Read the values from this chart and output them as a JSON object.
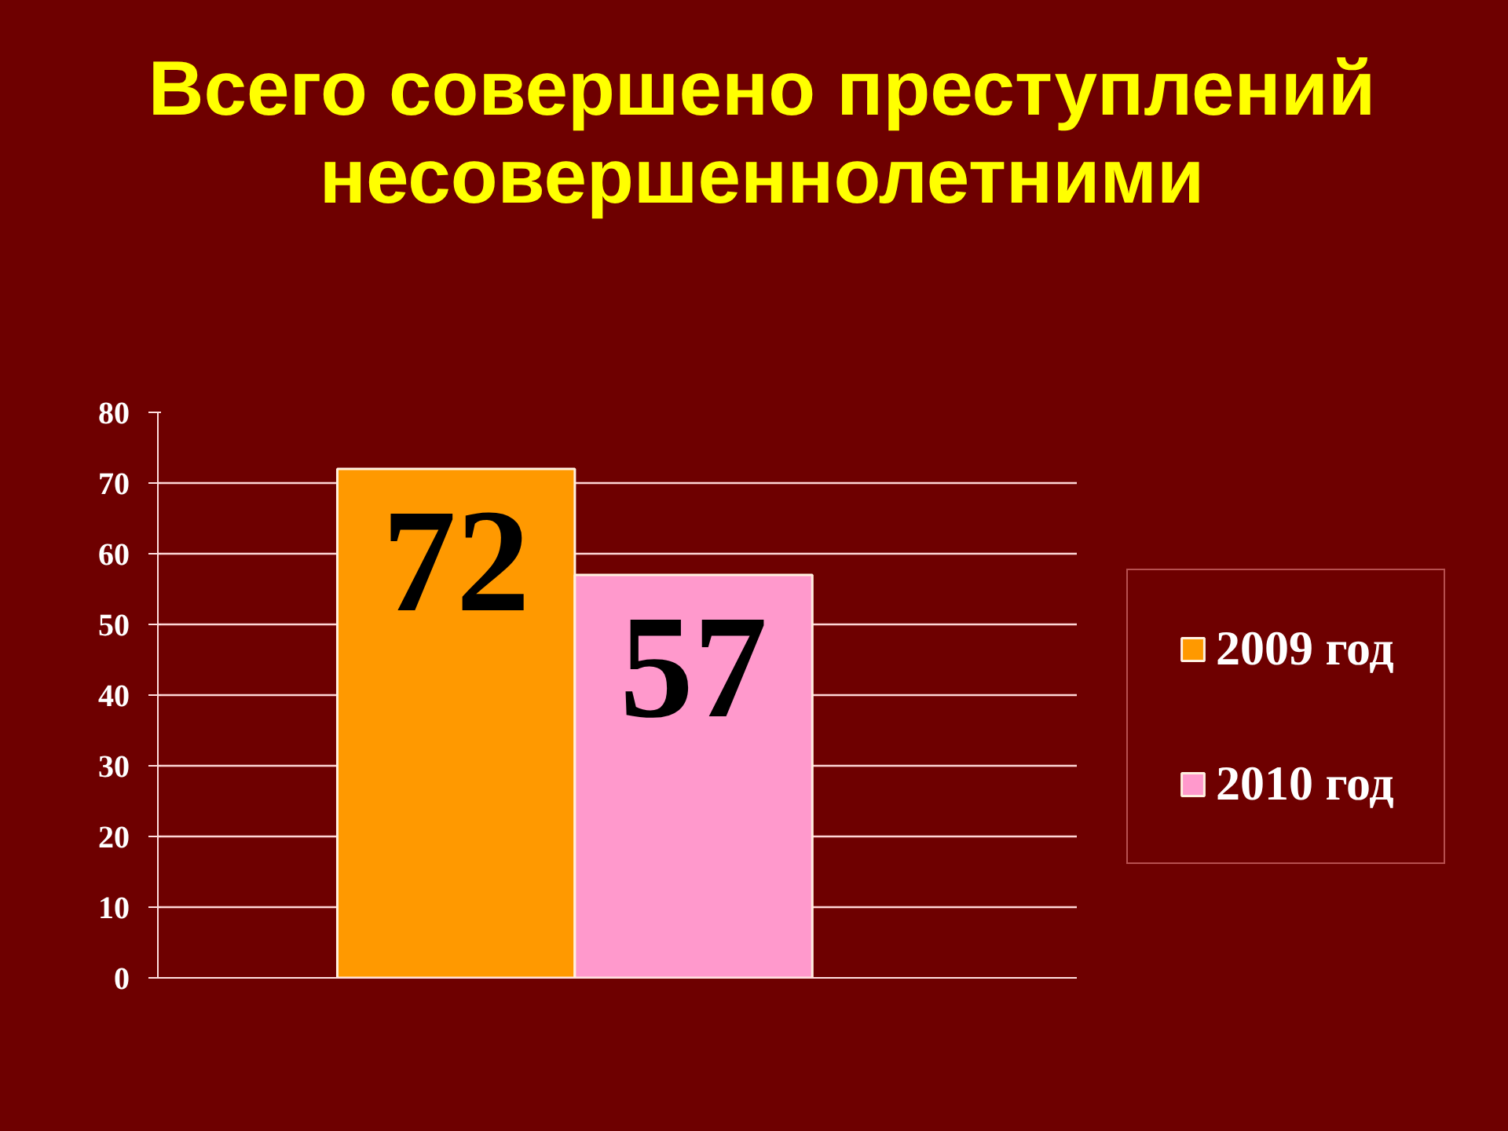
{
  "chart_data": {
    "type": "bar",
    "title": "Всего совершено преступлений несовершеннолетними",
    "categories": [
      null
    ],
    "series": [
      {
        "name": "2009 год",
        "color": "#ff9900",
        "values": [
          72
        ]
      },
      {
        "name": "2010 год",
        "color": "#ff99cc",
        "values": [
          57
        ]
      }
    ],
    "ylim": [
      0,
      80
    ],
    "yticks": [
      0,
      10,
      20,
      30,
      40,
      50,
      60,
      70,
      80
    ],
    "grid": "y",
    "legend": "right",
    "data_labels": true
  }
}
